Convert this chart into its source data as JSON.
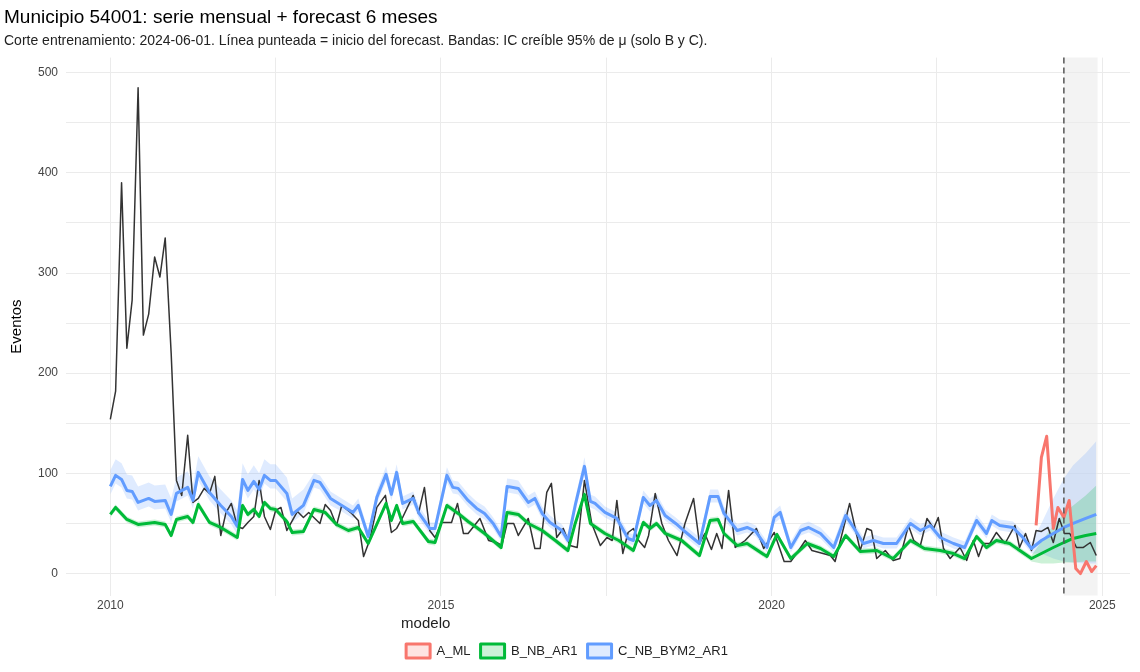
{
  "chart_data": {
    "type": "line",
    "title": "Municipio 54001: serie mensual + forecast 6 meses",
    "subtitle": "Corte entrenamiento: 2024-06-01. Línea punteada = inicio del forecast. Bandas: IC creíble 95% de μ (solo B y C).",
    "ylabel": "Eventos",
    "legend_title": "modelo",
    "legend": "bottom",
    "grid": true,
    "marker": "none",
    "line_style": "solid",
    "xlim": [
      2009.33,
      2025.42
    ],
    "xticks": [
      2010,
      {
        "value": 2012.5,
        "label": null
      },
      2015,
      {
        "value": 2017.5,
        "label": null
      },
      2020,
      {
        "value": 2022.5,
        "label": null
      },
      2025
    ],
    "ylim": [
      -22,
      515
    ],
    "yticks": [
      0,
      {
        "value": 50,
        "label": null
      },
      100,
      {
        "value": 150,
        "label": null
      },
      200,
      {
        "value": 250,
        "label": null
      },
      300,
      {
        "value": 350,
        "label": null
      },
      400,
      {
        "value": 450,
        "label": null
      },
      500
    ],
    "ref_lines": [
      {
        "axis": "x",
        "value": 2024.42,
        "color": "#555555",
        "line_style": "dashed"
      }
    ],
    "bands": [
      {
        "axis": "x",
        "from": 2024.42,
        "to": 2024.93,
        "color": "#ebebeb"
      }
    ],
    "series": [
      {
        "color": "#333333",
        "x": [
          2010.0,
          2010.08,
          2010.17,
          2010.25,
          2010.33,
          2010.42,
          2010.5,
          2010.58,
          2010.67,
          2010.75,
          2010.83,
          2010.92,
          2011.0,
          2011.08,
          2011.17,
          2011.25,
          2011.33,
          2011.42,
          2011.5,
          2011.58,
          2011.67,
          2011.75,
          2011.83,
          2011.92,
          2012.0,
          2012.08,
          2012.17,
          2012.25,
          2012.33,
          2012.42,
          2012.5,
          2012.58,
          2012.67,
          2012.83,
          2012.92,
          2013.0,
          2013.17,
          2013.25,
          2013.33,
          2013.42,
          2013.5,
          2013.65,
          2013.75,
          2013.83,
          2013.92,
          2014.03,
          2014.16,
          2014.25,
          2014.33,
          2014.42,
          2014.58,
          2014.66,
          2014.75,
          2014.83,
          2014.91,
          2015.01,
          2015.16,
          2015.25,
          2015.34,
          2015.41,
          2015.59,
          2015.72,
          2015.84,
          2015.92,
          2016.0,
          2016.1,
          2016.17,
          2016.32,
          2016.42,
          2016.5,
          2016.6,
          2016.67,
          2016.75,
          2016.85,
          2016.95,
          2017.06,
          2017.17,
          2017.28,
          2017.41,
          2017.51,
          2017.59,
          2017.66,
          2017.75,
          2017.83,
          2017.91,
          2017.99,
          2018.08,
          2018.14,
          2018.24,
          2018.34,
          2018.44,
          2018.57,
          2018.69,
          2018.82,
          2018.91,
          2018.99,
          2019.09,
          2019.17,
          2019.25,
          2019.35,
          2019.45,
          2019.6,
          2019.77,
          2019.88,
          2020.04,
          2020.19,
          2020.29,
          2020.41,
          2020.51,
          2020.61,
          2020.89,
          2020.96,
          2021.09,
          2021.18,
          2021.34,
          2021.44,
          2021.51,
          2021.59,
          2021.72,
          2021.84,
          2021.94,
          2022.07,
          2022.15,
          2022.25,
          2022.35,
          2022.45,
          2022.52,
          2022.6,
          2022.7,
          2022.85,
          2022.95,
          2023.05,
          2023.13,
          2023.2,
          2023.3,
          2023.4,
          2023.53,
          2023.68,
          2023.75,
          2023.84,
          2023.93,
          2024.0,
          2024.08,
          2024.18,
          2024.26,
          2024.35,
          2024.43,
          2024.51,
          2024.61,
          2024.71,
          2024.82,
          2024.91
        ],
        "values": [
          154,
          182,
          390,
          225,
          273,
          485,
          238,
          259,
          316,
          296,
          335,
          220,
          93,
          78,
          138,
          71,
          75,
          85,
          80,
          97,
          38,
          61,
          70,
          47,
          45,
          51,
          57,
          93,
          57,
          44,
          63,
          66,
          43,
          62,
          56,
          61,
          50,
          69,
          63,
          48,
          68,
          60,
          53,
          17,
          33,
          66,
          78,
          41,
          45,
          56,
          78,
          60,
          86,
          43,
          36,
          51,
          51,
          70,
          40,
          40,
          55,
          33,
          31,
          28,
          50,
          50,
          38,
          55,
          25,
          25,
          81,
          90,
          36,
          45,
          28,
          26,
          93,
          50,
          28,
          36,
          33,
          73,
          20,
          41,
          45,
          33,
          26,
          38,
          80,
          50,
          33,
          18,
          50,
          75,
          30,
          40,
          24,
          40,
          25,
          83,
          26,
          33,
          45,
          25,
          41,
          12,
          12,
          23,
          33,
          23,
          18,
          12,
          46,
          70,
          23,
          45,
          43,
          15,
          23,
          13,
          15,
          48,
          33,
          28,
          55,
          45,
          56,
          25,
          15,
          26,
          13,
          33,
          17,
          30,
          30,
          41,
          30,
          48,
          26,
          40,
          23,
          43,
          42,
          46,
          31,
          55,
          40,
          40,
          26,
          26,
          31,
          18
        ]
      },
      {
        "name": "A_ML",
        "color": "#f8766d",
        "x": [
          2024.0,
          2024.08,
          2024.16,
          2024.26,
          2024.33,
          2024.42,
          2024.5,
          2024.6,
          2024.67,
          2024.76,
          2024.84,
          2024.91
        ],
        "values": [
          48,
          116,
          137,
          45,
          66,
          56,
          73,
          5,
          0,
          12,
          2,
          8
        ]
      },
      {
        "name": "B_NB_AR1",
        "color": "#00ba38",
        "x": [
          2010.0,
          2010.08,
          2010.25,
          2010.42,
          2010.67,
          2010.83,
          2010.92,
          2011.0,
          2011.17,
          2011.25,
          2011.33,
          2011.5,
          2011.67,
          2011.92,
          2012.0,
          2012.08,
          2012.17,
          2012.25,
          2012.33,
          2012.42,
          2012.5,
          2012.67,
          2012.75,
          2012.92,
          2013.08,
          2013.25,
          2013.42,
          2013.6,
          2013.75,
          2013.9,
          2014.17,
          2014.25,
          2014.33,
          2014.42,
          2014.58,
          2014.81,
          2014.91,
          2015.09,
          2015.26,
          2015.41,
          2015.54,
          2015.66,
          2015.91,
          2016.0,
          2016.17,
          2016.32,
          2016.53,
          2016.73,
          2016.92,
          2017.03,
          2017.17,
          2017.26,
          2017.48,
          2017.69,
          2017.91,
          2018.06,
          2018.16,
          2018.26,
          2018.39,
          2018.64,
          2018.91,
          2019.07,
          2019.19,
          2019.28,
          2019.48,
          2019.63,
          2019.93,
          2020.08,
          2020.29,
          2020.54,
          2020.74,
          2020.94,
          2021.12,
          2021.34,
          2021.59,
          2021.84,
          2022.1,
          2022.31,
          2022.55,
          2022.75,
          2022.92,
          2023.1,
          2023.25,
          2023.4,
          2023.6,
          2023.93,
          2024.08,
          2024.26,
          2024.42,
          2024.56,
          2024.75,
          2024.91
        ],
        "values": [
          59,
          66,
          54,
          49,
          51,
          49,
          38,
          54,
          57,
          51,
          69,
          51,
          46,
          36,
          68,
          59,
          64,
          57,
          71,
          65,
          64,
          52,
          41,
          42,
          64,
          61,
          49,
          43,
          46,
          30,
          70,
          53,
          68,
          50,
          52,
          32,
          31,
          68,
          60,
          52,
          46,
          40,
          26,
          61,
          59,
          50,
          43,
          33,
          23,
          50,
          79,
          50,
          40,
          33,
          23,
          51,
          45,
          50,
          40,
          33,
          18,
          53,
          54,
          40,
          28,
          30,
          17,
          39,
          15,
          30,
          25,
          17,
          38,
          22,
          23,
          15,
          33,
          25,
          23,
          20,
          15,
          37,
          26,
          33,
          30,
          15,
          20,
          26,
          31,
          35,
          38,
          40
        ],
        "lower": [
          56,
          63,
          51,
          46,
          48,
          46,
          35,
          51,
          54,
          48,
          66,
          48,
          43,
          33,
          65,
          56,
          61,
          54,
          68,
          62,
          61,
          49,
          38,
          39,
          61,
          58,
          46,
          40,
          43,
          27,
          67,
          50,
          65,
          47,
          49,
          29,
          28,
          65,
          57,
          49,
          43,
          37,
          23,
          58,
          56,
          47,
          40,
          30,
          20,
          47,
          75,
          47,
          37,
          30,
          20,
          48,
          42,
          47,
          37,
          30,
          15,
          50,
          51,
          37,
          25,
          27,
          14,
          36,
          12,
          27,
          22,
          14,
          35,
          19,
          20,
          12,
          30,
          22,
          20,
          17,
          12,
          34,
          23,
          30,
          27,
          12,
          10,
          10,
          11,
          11,
          12,
          12
        ],
        "upper": [
          62,
          69,
          57,
          52,
          54,
          52,
          41,
          57,
          60,
          54,
          73,
          54,
          49,
          39,
          71,
          62,
          67,
          60,
          74,
          68,
          67,
          55,
          44,
          45,
          67,
          64,
          52,
          46,
          49,
          33,
          73,
          56,
          71,
          53,
          55,
          35,
          34,
          71,
          63,
          55,
          49,
          43,
          29,
          64,
          62,
          53,
          46,
          36,
          26,
          53,
          84,
          53,
          43,
          36,
          26,
          54,
          48,
          53,
          43,
          36,
          21,
          56,
          57,
          43,
          31,
          33,
          20,
          42,
          18,
          33,
          28,
          20,
          41,
          25,
          26,
          18,
          36,
          28,
          26,
          23,
          18,
          40,
          29,
          36,
          33,
          18,
          32,
          48,
          60,
          68,
          78,
          88
        ]
      },
      {
        "name": "C_NB_BYM2_AR1",
        "color": "#619cff",
        "x": [
          2010.0,
          2010.08,
          2010.17,
          2010.25,
          2010.33,
          2010.42,
          2010.58,
          2010.67,
          2010.83,
          2010.92,
          2011.0,
          2011.17,
          2011.25,
          2011.33,
          2011.5,
          2011.67,
          2011.83,
          2011.92,
          2012.0,
          2012.08,
          2012.17,
          2012.25,
          2012.33,
          2012.42,
          2012.5,
          2012.67,
          2012.75,
          2012.92,
          2013.08,
          2013.17,
          2013.33,
          2013.5,
          2013.67,
          2013.75,
          2013.9,
          2014.03,
          2014.17,
          2014.25,
          2014.33,
          2014.42,
          2014.58,
          2014.67,
          2014.83,
          2014.91,
          2015.09,
          2015.18,
          2015.26,
          2015.41,
          2015.54,
          2015.66,
          2015.79,
          2015.91,
          2016.0,
          2016.17,
          2016.32,
          2016.42,
          2016.53,
          2016.65,
          2016.83,
          2016.92,
          2017.03,
          2017.17,
          2017.26,
          2017.33,
          2017.48,
          2017.66,
          2017.83,
          2017.91,
          2018.06,
          2018.16,
          2018.26,
          2018.39,
          2018.55,
          2018.67,
          2018.91,
          2019.07,
          2019.19,
          2019.28,
          2019.48,
          2019.63,
          2019.76,
          2019.93,
          2020.04,
          2020.13,
          2020.29,
          2020.44,
          2020.56,
          2020.74,
          2020.94,
          2021.12,
          2021.24,
          2021.39,
          2021.54,
          2021.69,
          2021.89,
          2022.1,
          2022.25,
          2022.4,
          2022.55,
          2022.75,
          2022.92,
          2023.1,
          2023.25,
          2023.33,
          2023.45,
          2023.65,
          2023.8,
          2023.93,
          2024.08,
          2024.26,
          2024.42,
          2024.56,
          2024.75,
          2024.91
        ],
        "values": [
          87,
          98,
          94,
          83,
          82,
          71,
          75,
          72,
          73,
          59,
          80,
          86,
          73,
          101,
          81,
          68,
          57,
          47,
          94,
          83,
          92,
          84,
          98,
          93,
          93,
          80,
          59,
          68,
          93,
          91,
          75,
          68,
          61,
          68,
          37,
          76,
          99,
          79,
          101,
          70,
          75,
          60,
          45,
          45,
          98,
          86,
          85,
          73,
          65,
          60,
          50,
          37,
          87,
          85,
          71,
          75,
          60,
          51,
          43,
          33,
          68,
          107,
          72,
          70,
          61,
          55,
          35,
          33,
          76,
          68,
          73,
          58,
          50,
          43,
          30,
          77,
          77,
          60,
          43,
          46,
          42,
          26,
          56,
          61,
          26,
          43,
          46,
          40,
          26,
          58,
          46,
          30,
          33,
          30,
          30,
          50,
          43,
          48,
          36,
          30,
          26,
          53,
          40,
          53,
          48,
          46,
          36,
          25,
          33,
          40,
          46,
          50,
          55,
          59
        ],
        "lower": [
          79,
          90,
          86,
          75,
          74,
          63,
          67,
          64,
          65,
          51,
          72,
          78,
          65,
          93,
          73,
          60,
          49,
          39,
          86,
          75,
          84,
          76,
          90,
          85,
          85,
          72,
          51,
          60,
          86,
          84,
          68,
          62,
          55,
          62,
          32,
          70,
          92,
          73,
          94,
          64,
          69,
          54,
          40,
          40,
          91,
          80,
          79,
          67,
          59,
          54,
          45,
          32,
          81,
          79,
          65,
          69,
          54,
          46,
          38,
          28,
          62,
          99,
          66,
          64,
          56,
          50,
          30,
          28,
          70,
          62,
          67,
          53,
          45,
          38,
          25,
          71,
          71,
          54,
          38,
          41,
          37,
          21,
          50,
          55,
          21,
          38,
          41,
          35,
          21,
          52,
          41,
          25,
          28,
          25,
          25,
          45,
          38,
          43,
          31,
          25,
          21,
          48,
          35,
          48,
          43,
          41,
          31,
          20,
          20,
          15,
          12,
          11,
          10,
          10
        ],
        "upper": [
          103,
          114,
          110,
          99,
          98,
          87,
          91,
          88,
          89,
          75,
          96,
          102,
          89,
          117,
          97,
          84,
          73,
          63,
          110,
          99,
          108,
          100,
          114,
          109,
          109,
          96,
          75,
          84,
          100,
          98,
          82,
          75,
          68,
          75,
          43,
          83,
          107,
          86,
          109,
          77,
          82,
          67,
          51,
          51,
          106,
          93,
          92,
          80,
          72,
          67,
          56,
          43,
          95,
          93,
          78,
          82,
          67,
          58,
          49,
          39,
          75,
          116,
          79,
          77,
          67,
          61,
          41,
          39,
          83,
          75,
          80,
          64,
          56,
          49,
          36,
          84,
          84,
          67,
          49,
          52,
          48,
          32,
          63,
          68,
          32,
          49,
          52,
          46,
          32,
          65,
          52,
          36,
          39,
          36,
          36,
          56,
          49,
          54,
          42,
          36,
          32,
          59,
          46,
          59,
          54,
          52,
          42,
          31,
          50,
          75,
          95,
          108,
          120,
          132
        ]
      }
    ]
  }
}
